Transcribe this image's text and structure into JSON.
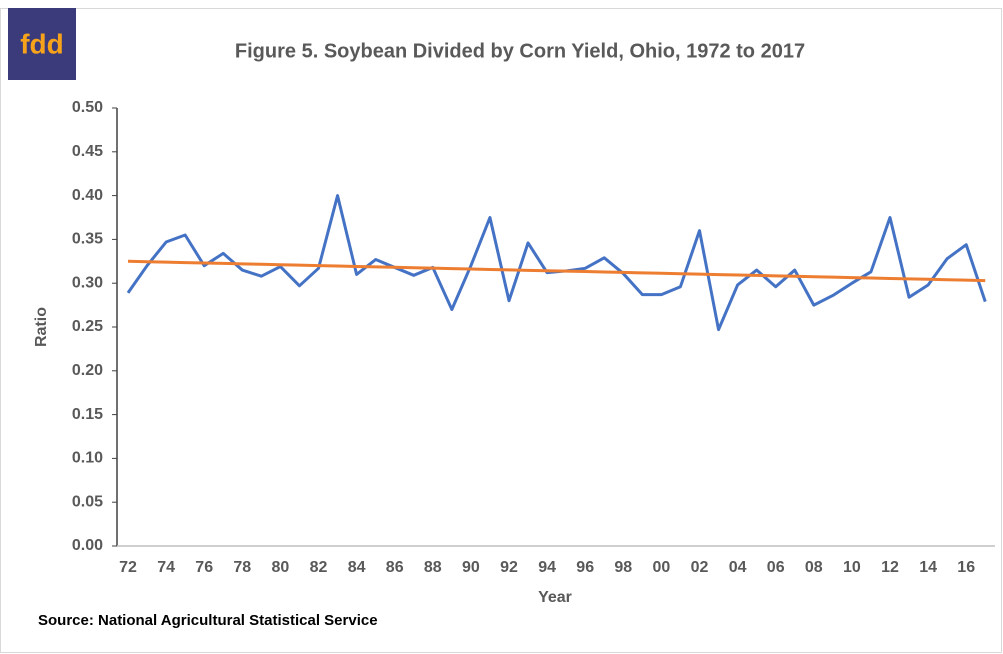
{
  "logo": "fdd",
  "chart_data": {
    "type": "line",
    "title": "Figure 5.  Soybean Divided by Corn Yield, Ohio, 1972 to 2017",
    "xlabel": "Year",
    "ylabel": "Ratio",
    "source": "Source: National Agricultural Statistical Service",
    "categories": [
      "72",
      null,
      "74",
      null,
      "76",
      null,
      "78",
      null,
      "80",
      null,
      "82",
      null,
      "84",
      null,
      "86",
      null,
      "88",
      null,
      "90",
      null,
      "92",
      null,
      "94",
      null,
      "96",
      null,
      "98",
      null,
      "00",
      null,
      "02",
      null,
      "04",
      null,
      "06",
      null,
      "08",
      null,
      "10",
      null,
      "12",
      null,
      "14",
      null,
      "16",
      null
    ],
    "series": [
      {
        "color": "#4472c4",
        "values": [
          0.289,
          0.32,
          0.347,
          0.355,
          0.32,
          0.334,
          0.315,
          0.308,
          0.319,
          0.297,
          0.317,
          0.4,
          0.31,
          0.327,
          0.318,
          0.309,
          0.318,
          0.27,
          0.32,
          0.375,
          0.28,
          0.346,
          0.312,
          0.314,
          0.317,
          0.329,
          0.311,
          0.287,
          0.287,
          0.296,
          0.36,
          0.247,
          0.298,
          0.315,
          0.296,
          0.315,
          0.275,
          0.286,
          0.3,
          0.313,
          0.375,
          0.284,
          0.298,
          0.328,
          0.344,
          0.279
        ]
      },
      {
        "color": "#ed7d31",
        "values": [
          0.325,
          0.3245,
          0.324,
          0.3235,
          0.323,
          0.3226,
          0.3221,
          0.3216,
          0.3211,
          0.3206,
          0.3201,
          0.3196,
          0.3191,
          0.3186,
          0.3182,
          0.3177,
          0.3172,
          0.3167,
          0.3162,
          0.3157,
          0.3152,
          0.3147,
          0.3142,
          0.3138,
          0.3133,
          0.3128,
          0.3123,
          0.3118,
          0.3113,
          0.3108,
          0.3103,
          0.3098,
          0.3094,
          0.3089,
          0.3084,
          0.3079,
          0.3074,
          0.3069,
          0.3064,
          0.3059,
          0.3054,
          0.305,
          0.3045,
          0.304,
          0.3035,
          0.303
        ]
      }
    ],
    "ylim": [
      0,
      0.5
    ],
    "yticks": [
      {
        "value": 0,
        "label": "0.00"
      },
      {
        "value": 0.05,
        "label": "0.05"
      },
      {
        "value": 0.1,
        "label": "0.10"
      },
      {
        "value": 0.15,
        "label": "0.15"
      },
      {
        "value": 0.2,
        "label": "0.20"
      },
      {
        "value": 0.25,
        "label": "0.25"
      },
      {
        "value": 0.3,
        "label": "0.30"
      },
      {
        "value": 0.35,
        "label": "0.35"
      },
      {
        "value": 0.4,
        "label": "0.40"
      },
      {
        "value": 0.45,
        "label": "0.45"
      },
      {
        "value": 0.5,
        "label": "0.50"
      }
    ],
    "grid": false
  }
}
